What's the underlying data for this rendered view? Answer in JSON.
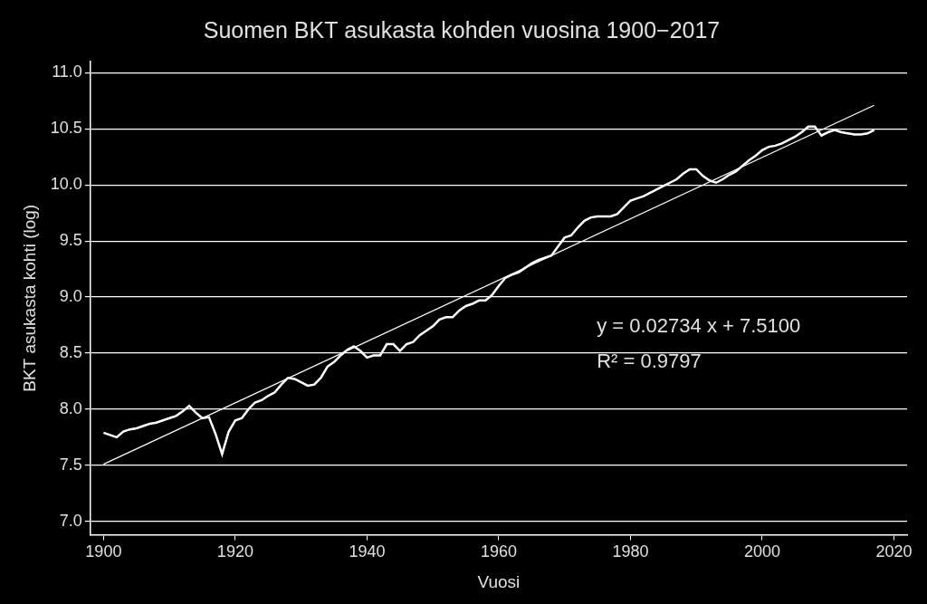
{
  "chart_data": {
    "type": "line",
    "title": "Suomen BKT asukasta kohden vuosina 1900−2017",
    "x_label": "Vuosi",
    "y_label": "BKT asukasta kohti (log)",
    "x": [
      1900,
      1901,
      1902,
      1903,
      1904,
      1905,
      1906,
      1907,
      1908,
      1909,
      1910,
      1911,
      1912,
      1913,
      1914,
      1915,
      1916,
      1917,
      1918,
      1919,
      1920,
      1921,
      1922,
      1923,
      1924,
      1925,
      1926,
      1927,
      1928,
      1929,
      1930,
      1931,
      1932,
      1933,
      1934,
      1935,
      1936,
      1937,
      1938,
      1939,
      1940,
      1941,
      1942,
      1943,
      1944,
      1945,
      1946,
      1947,
      1948,
      1949,
      1950,
      1951,
      1952,
      1953,
      1954,
      1955,
      1956,
      1957,
      1958,
      1959,
      1960,
      1961,
      1962,
      1963,
      1964,
      1965,
      1966,
      1967,
      1968,
      1969,
      1970,
      1971,
      1972,
      1973,
      1974,
      1975,
      1976,
      1977,
      1978,
      1979,
      1980,
      1981,
      1982,
      1983,
      1984,
      1985,
      1986,
      1987,
      1988,
      1989,
      1990,
      1991,
      1992,
      1993,
      1994,
      1995,
      1996,
      1997,
      1998,
      1999,
      2000,
      2001,
      2002,
      2003,
      2004,
      2005,
      2006,
      2007,
      2008,
      2009,
      2010,
      2011,
      2012,
      2013,
      2014,
      2015,
      2016,
      2017
    ],
    "values": [
      7.79,
      7.77,
      7.75,
      7.8,
      7.82,
      7.83,
      7.85,
      7.87,
      7.88,
      7.9,
      7.92,
      7.94,
      7.98,
      8.03,
      7.97,
      7.92,
      7.93,
      7.78,
      7.6,
      7.8,
      7.9,
      7.92,
      8.0,
      8.06,
      8.08,
      8.12,
      8.15,
      8.22,
      8.28,
      8.27,
      8.24,
      8.21,
      8.22,
      8.28,
      8.38,
      8.42,
      8.48,
      8.53,
      8.56,
      8.52,
      8.46,
      8.48,
      8.48,
      8.58,
      8.58,
      8.52,
      8.58,
      8.6,
      8.66,
      8.7,
      8.74,
      8.8,
      8.82,
      8.82,
      8.88,
      8.92,
      8.94,
      8.97,
      8.97,
      9.02,
      9.1,
      9.17,
      9.2,
      9.22,
      9.26,
      9.3,
      9.33,
      9.35,
      9.37,
      9.45,
      9.53,
      9.55,
      9.62,
      9.68,
      9.71,
      9.72,
      9.72,
      9.72,
      9.74,
      9.8,
      9.86,
      9.88,
      9.9,
      9.93,
      9.96,
      9.99,
      10.02,
      10.05,
      10.1,
      10.14,
      10.14,
      10.08,
      10.04,
      10.02,
      10.05,
      10.09,
      10.12,
      10.17,
      10.22,
      10.26,
      10.31,
      10.34,
      10.35,
      10.37,
      10.4,
      10.43,
      10.47,
      10.52,
      10.52,
      10.44,
      10.47,
      10.49,
      10.47,
      10.46,
      10.45,
      10.45,
      10.46,
      10.49
    ],
    "color": "#ffffff",
    "trendline": {
      "x": [
        1900,
        2017
      ],
      "values": [
        7.51,
        10.71
      ],
      "color": "#ffffff"
    },
    "annotations": [
      "y = 0.02734 x + 7.5100",
      "R² = 0.9797"
    ],
    "xlim": [
      1898,
      2022
    ],
    "ylim": [
      6.88,
      11.1
    ],
    "xticks": [
      1900,
      1920,
      1940,
      1960,
      1980,
      2000,
      2020
    ],
    "yticks": [
      {
        "value": 7,
        "label": "7.0"
      },
      7.5,
      {
        "value": 8,
        "label": "8.0"
      },
      8.5,
      {
        "value": 9,
        "label": "9.0"
      },
      9.5,
      {
        "value": 10,
        "label": "10.0"
      },
      10.5,
      {
        "value": 11,
        "label": "11.0"
      }
    ],
    "grid": true
  }
}
